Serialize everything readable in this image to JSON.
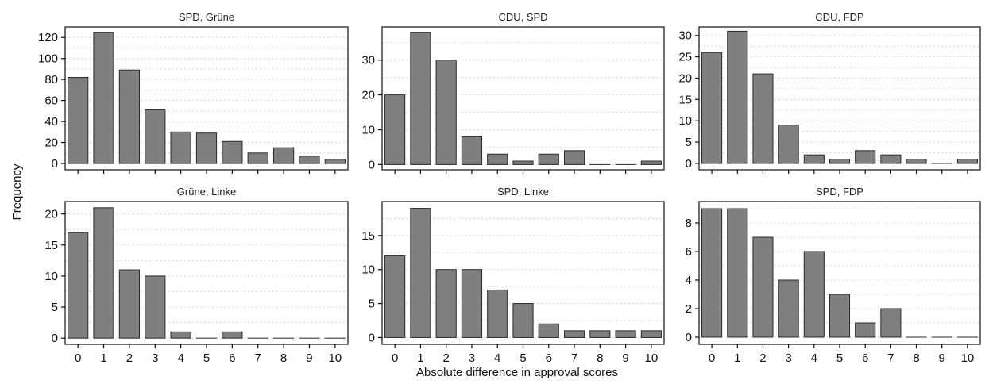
{
  "chart_data": {
    "type": "bar",
    "xlabel": "Absolute difference in approval scores",
    "ylabel": "Frequency",
    "categories": [
      "0",
      "1",
      "2",
      "3",
      "4",
      "5",
      "6",
      "7",
      "8",
      "9",
      "10"
    ],
    "grid": "dotted horizontal",
    "colors": {
      "bar_fill": "#7f7f7f",
      "bar_stroke": "#2a2a2a"
    },
    "panels": [
      {
        "title": "SPD, Grüne",
        "values": [
          82,
          125,
          89,
          51,
          30,
          29,
          21,
          10,
          15,
          7,
          4
        ],
        "ylim": [
          -6,
          130
        ],
        "yticks": [
          0,
          20,
          40,
          60,
          80,
          100,
          120
        ]
      },
      {
        "title": "CDU, SPD",
        "values": [
          20,
          38,
          30,
          8,
          3,
          1,
          3,
          4,
          0,
          0,
          1
        ],
        "ylim": [
          -1.5,
          39.5
        ],
        "yticks": [
          0,
          10,
          20,
          30
        ]
      },
      {
        "title": "CDU, FDP",
        "values": [
          26,
          31,
          21,
          9,
          2,
          1,
          3,
          2,
          1,
          0,
          1
        ],
        "ylim": [
          -1.5,
          32
        ],
        "yticks": [
          0,
          5,
          10,
          15,
          20,
          25,
          30
        ]
      },
      {
        "title": "Grüne, Linke",
        "values": [
          17,
          21,
          11,
          10,
          1,
          0,
          1,
          0,
          0,
          0,
          0
        ],
        "ylim": [
          -1,
          22
        ],
        "yticks": [
          0,
          5,
          10,
          15,
          20
        ]
      },
      {
        "title": "SPD, Linke",
        "values": [
          12,
          19,
          10,
          10,
          7,
          5,
          2,
          1,
          1,
          1,
          1
        ],
        "ylim": [
          -1,
          20
        ],
        "yticks": [
          0,
          5,
          10,
          15
        ]
      },
      {
        "title": "SPD, FDP",
        "values": [
          9,
          9,
          7,
          4,
          6,
          3,
          1,
          2,
          0,
          0,
          0
        ],
        "ylim": [
          -0.5,
          9.5
        ],
        "yticks": [
          0,
          2,
          4,
          6,
          8
        ]
      }
    ]
  }
}
